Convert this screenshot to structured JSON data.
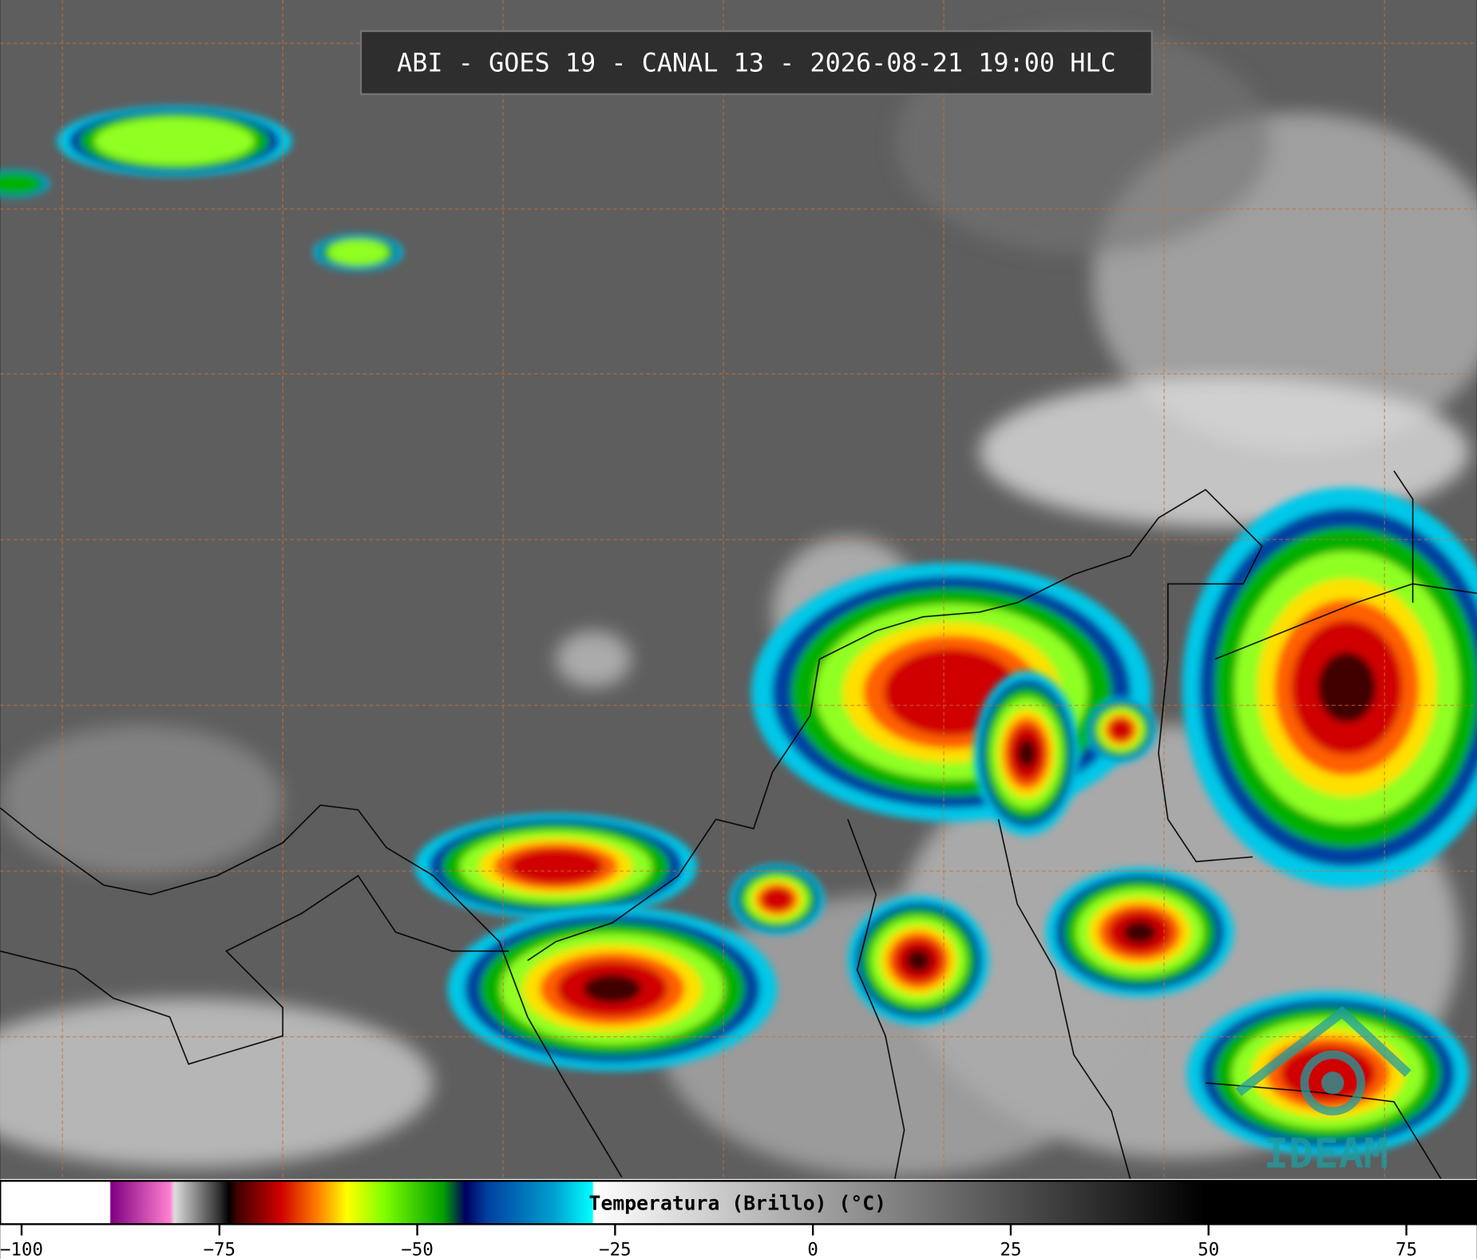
{
  "header": {
    "title": "ABI - GOES 19 - CANAL 13 - 2026-08-21 19:00 HLC"
  },
  "logo": {
    "text": "IDEAM"
  },
  "colorbar": {
    "label": "Temperatura (Brillo) (°C)",
    "lim": [
      -102.7,
      83.9
    ],
    "ticks": [
      {
        "value": -100,
        "label": "−100"
      },
      {
        "value": -75,
        "label": "−75"
      },
      {
        "value": -50,
        "label": "−50"
      },
      {
        "value": -25,
        "label": "−25"
      },
      0,
      25,
      50,
      75
    ]
  }
}
